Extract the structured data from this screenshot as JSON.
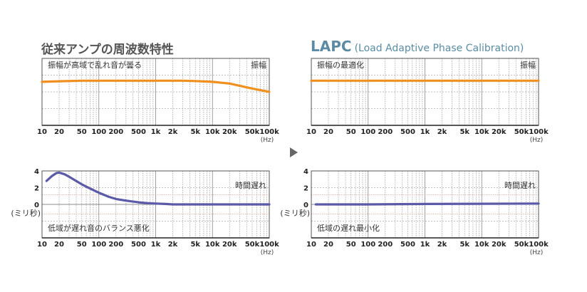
{
  "headings": {
    "left": "従来アンプの周波数特性",
    "right_main": "LAPC",
    "right_sub": "(Load Adaptive Phase Calibration)"
  },
  "colors": {
    "amplitude": "#f0901e",
    "delay": "#5a5aa8",
    "grid": "#999999",
    "frame": "#555555",
    "dotted_red": "#d9a38f"
  },
  "chart_data": [
    {
      "type": "line",
      "panel": "top-left",
      "annotation": "振幅が高域で乱れ音が曇る",
      "series_label": "振幅",
      "xscale": "log",
      "xlim": [
        10,
        100000
      ],
      "x_ticks": [
        "10",
        "20",
        "50",
        "100",
        "200",
        "500",
        "1k",
        "2k",
        "5k",
        "10k",
        "20k",
        "50k",
        "100k"
      ],
      "x_unit": "(Hz)",
      "series": [
        {
          "x": [
            10,
            20,
            50,
            100,
            200,
            500,
            1000,
            2000,
            3000,
            5000,
            10000,
            20000,
            50000,
            100000
          ],
          "y": [
            0.9,
            0.95,
            1.0,
            1.0,
            1.0,
            1.0,
            1.0,
            1.0,
            1.0,
            0.97,
            0.9,
            0.75,
            0.3,
            0
          ]
        }
      ],
      "ylim": [
        -3,
        3
      ]
    },
    {
      "type": "line",
      "panel": "top-right",
      "annotation": "振幅の最適化",
      "series_label": "振幅",
      "xscale": "log",
      "xlim": [
        10,
        100000
      ],
      "x_ticks": [
        "10",
        "20",
        "50",
        "100",
        "200",
        "500",
        "1k",
        "2k",
        "5k",
        "10k",
        "20k",
        "50k",
        "100k"
      ],
      "x_unit": "(Hz)",
      "series": [
        {
          "x": [
            10,
            100,
            1000,
            10000,
            100000
          ],
          "y": [
            1.0,
            1.0,
            1.0,
            1.0,
            1.0
          ]
        }
      ],
      "ylim": [
        -3,
        3
      ]
    },
    {
      "type": "line",
      "panel": "bottom-left",
      "annotation": "低域が遅れ音のバランス悪化",
      "series_label": "時間遅れ",
      "ylabel": "(ミリ秒)",
      "xscale": "log",
      "xlim": [
        10,
        100000
      ],
      "x_ticks": [
        "10",
        "20",
        "50",
        "100",
        "200",
        "500",
        "1k",
        "2k",
        "5k",
        "10k",
        "20k",
        "50k",
        "100k"
      ],
      "x_unit": "(Hz)",
      "y_ticks": [
        "4",
        "2",
        "0"
      ],
      "ylim": [
        -4,
        4
      ],
      "series": [
        {
          "x": [
            12,
            15,
            18,
            20,
            25,
            30,
            40,
            50,
            70,
            100,
            150,
            200,
            300,
            500,
            700,
            1000,
            1500,
            2000,
            5000,
            10000,
            50000,
            100000
          ],
          "y": [
            2.8,
            3.4,
            3.75,
            3.8,
            3.6,
            3.3,
            2.8,
            2.4,
            1.9,
            1.4,
            0.9,
            0.65,
            0.45,
            0.25,
            0.15,
            0.1,
            0.05,
            0,
            0,
            0,
            0,
            0
          ]
        }
      ]
    },
    {
      "type": "line",
      "panel": "bottom-right",
      "annotation": "低域の遅れ最小化",
      "series_label": "時間遅れ",
      "ylabel": "(ミリ秒)",
      "xscale": "log",
      "xlim": [
        10,
        100000
      ],
      "x_ticks": [
        "10",
        "20",
        "50",
        "100",
        "200",
        "500",
        "1k",
        "2k",
        "5k",
        "10k",
        "20k",
        "50k",
        "100k"
      ],
      "x_unit": "(Hz)",
      "y_ticks": [
        "4",
        "2",
        "0"
      ],
      "ylim": [
        -4,
        4
      ],
      "series": [
        {
          "x": [
            12,
            100,
            1000,
            10000,
            100000
          ],
          "y": [
            0,
            0,
            0.05,
            0.08,
            0.1
          ]
        }
      ]
    }
  ]
}
